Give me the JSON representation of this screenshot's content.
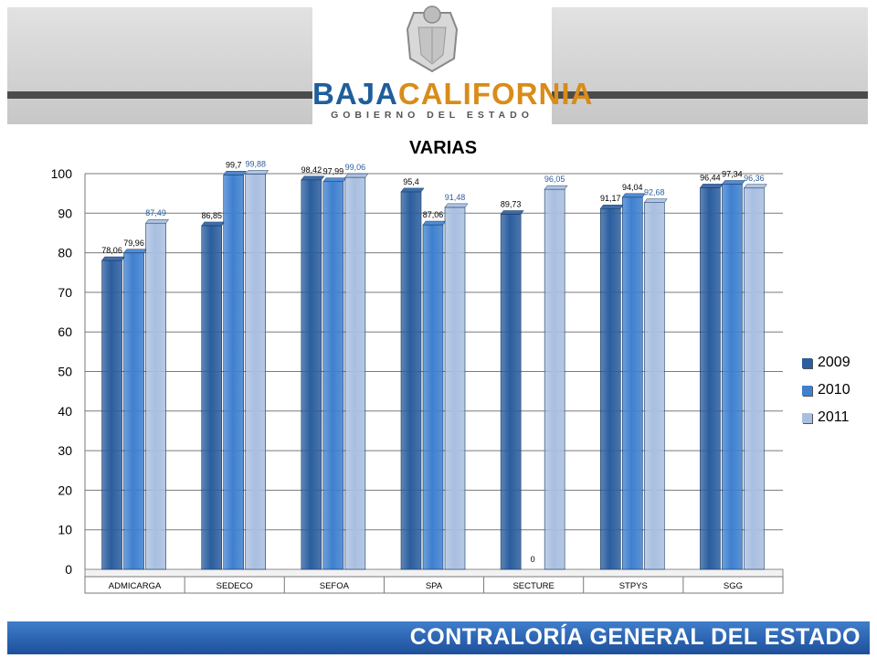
{
  "header": {
    "logo_text_a": "BAJA",
    "logo_text_b": "CALIFORNIA",
    "logo_subtitle": "GOBIERNO DEL ESTADO"
  },
  "footer": {
    "title": "CONTRALORÍA GENERAL DEL ESTADO"
  },
  "chart_data": {
    "type": "bar",
    "title": "VARIAS",
    "categories": [
      "ADMICARGA",
      "SEDECO",
      "SEFOA",
      "SPA",
      "SECTURE",
      "STPYS",
      "SGG"
    ],
    "series": [
      {
        "name": "2009",
        "color": "#2b5e9e",
        "values": [
          78.06,
          86.85,
          98.42,
          95.4,
          89.73,
          91.17,
          96.44
        ],
        "labels": [
          "78,06",
          "86,85",
          "98,42",
          "95,4",
          "89,73",
          "91,17",
          "96,44"
        ]
      },
      {
        "name": "2010",
        "color": "#3f80cf",
        "values": [
          79.96,
          99.7,
          97.99,
          87.06,
          0,
          94.04,
          97.34
        ],
        "labels": [
          "79,96",
          "99,7",
          "97,99",
          "87,06",
          "0",
          "94,04",
          "97,34"
        ]
      },
      {
        "name": "2011",
        "color": "#a9bfe0",
        "values": [
          87.49,
          99.88,
          99.06,
          91.48,
          96.05,
          92.68,
          96.36
        ],
        "labels": [
          "87,49",
          "99,88",
          "99,06",
          "91,48",
          "96,05",
          "92,68",
          "96,36"
        ]
      }
    ],
    "ylim": [
      0,
      100
    ],
    "yticks": [
      0,
      10,
      20,
      30,
      40,
      50,
      60,
      70,
      80,
      90,
      100
    ],
    "grid": true,
    "legend_position": "right"
  }
}
